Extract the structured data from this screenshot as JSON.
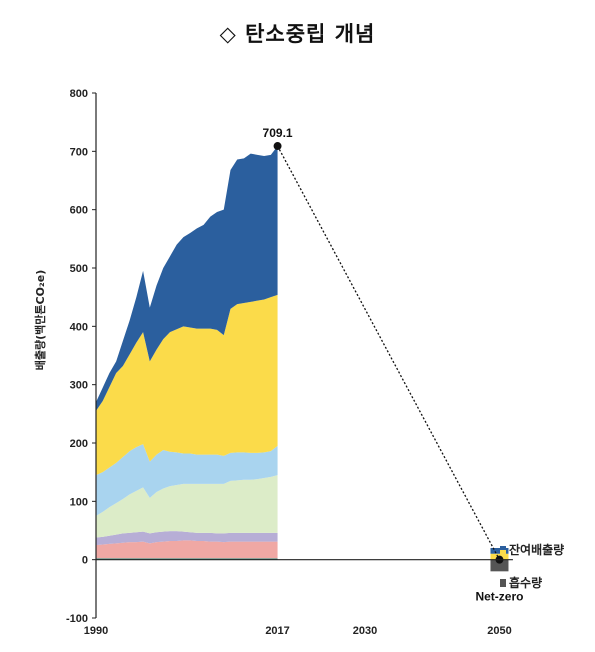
{
  "title": "◇ 탄소중립 개념",
  "chart_data": {
    "type": "area",
    "title": "◇ 탄소중립 개념",
    "xlabel": "",
    "ylabel": "배출량(백만톤CO₂e)",
    "ylim": [
      -100,
      800
    ],
    "xlim": [
      1990,
      2059
    ],
    "yticks": [
      -100,
      0,
      100,
      200,
      300,
      400,
      500,
      600,
      700,
      800
    ],
    "xticks": [
      1990,
      2017,
      2030,
      2050
    ],
    "grid": false,
    "stack": {
      "years": [
        1990,
        1991,
        1992,
        1993,
        1994,
        1995,
        1996,
        1997,
        1998,
        1999,
        2000,
        2001,
        2002,
        2003,
        2004,
        2005,
        2006,
        2007,
        2008,
        2009,
        2010,
        2011,
        2012,
        2013,
        2014,
        2015,
        2016,
        2017
      ],
      "colors": [
        "#2e9e8f",
        "#f0a8a4",
        "#b7aed6",
        "#dcecc8",
        "#a9d4ef",
        "#fbdb4a",
        "#2b5f9e"
      ],
      "layer_tops": [
        [
          2,
          2,
          2,
          2,
          2,
          2,
          2,
          2,
          2,
          2,
          2,
          2,
          2,
          2,
          2,
          2,
          2,
          2,
          2,
          2,
          2,
          2,
          2,
          2,
          2,
          2,
          2,
          2
        ],
        [
          25,
          26,
          27,
          28,
          29,
          30,
          30,
          31,
          28,
          30,
          31,
          32,
          32,
          33,
          33,
          32,
          32,
          31,
          31,
          30,
          31,
          31,
          31,
          31,
          31,
          31,
          31,
          31
        ],
        [
          38,
          39,
          41,
          43,
          45,
          46,
          47,
          48,
          45,
          47,
          48,
          49,
          49,
          48,
          47,
          46,
          46,
          46,
          45,
          45,
          46,
          46,
          46,
          46,
          46,
          46,
          46,
          46
        ],
        [
          75,
          82,
          90,
          97,
          104,
          112,
          118,
          124,
          106,
          116,
          122,
          126,
          128,
          130,
          130,
          130,
          130,
          130,
          130,
          130,
          135,
          136,
          137,
          137,
          138,
          140,
          142,
          145
        ],
        [
          145,
          150,
          158,
          166,
          176,
          186,
          193,
          198,
          168,
          180,
          188,
          185,
          184,
          182,
          182,
          180,
          180,
          180,
          180,
          178,
          183,
          184,
          184,
          183,
          183,
          184,
          186,
          195
        ],
        [
          255,
          272,
          296,
          320,
          332,
          352,
          372,
          390,
          340,
          360,
          378,
          390,
          395,
          400,
          398,
          396,
          396,
          396,
          394,
          385,
          430,
          438,
          440,
          442,
          444,
          446,
          450,
          454
        ],
        [
          270,
          295,
          320,
          340,
          375,
          410,
          450,
          495,
          432,
          470,
          500,
          520,
          540,
          553,
          560,
          568,
          574,
          588,
          596,
          600,
          668,
          686,
          688,
          696,
          694,
          692,
          694,
          709.1
        ]
      ]
    },
    "peak": {
      "year": 2017,
      "value": 709.1,
      "label": "709.1"
    },
    "target": {
      "year": 2050,
      "value": 0,
      "label": "Net-zero"
    },
    "net_zero_bars": {
      "year": 2050,
      "residual_emissions": 20,
      "absorption": -20,
      "residual_colors": [
        "#2b5f9e",
        "#fbdb4a"
      ],
      "absorption_color": "#555555"
    },
    "legend": [
      {
        "label": "잔여배출량",
        "colors": [
          "#2b5f9e",
          "#fbdb4a"
        ]
      },
      {
        "label": "흡수량",
        "colors": [
          "#555555"
        ]
      }
    ],
    "legend_position": "right"
  }
}
